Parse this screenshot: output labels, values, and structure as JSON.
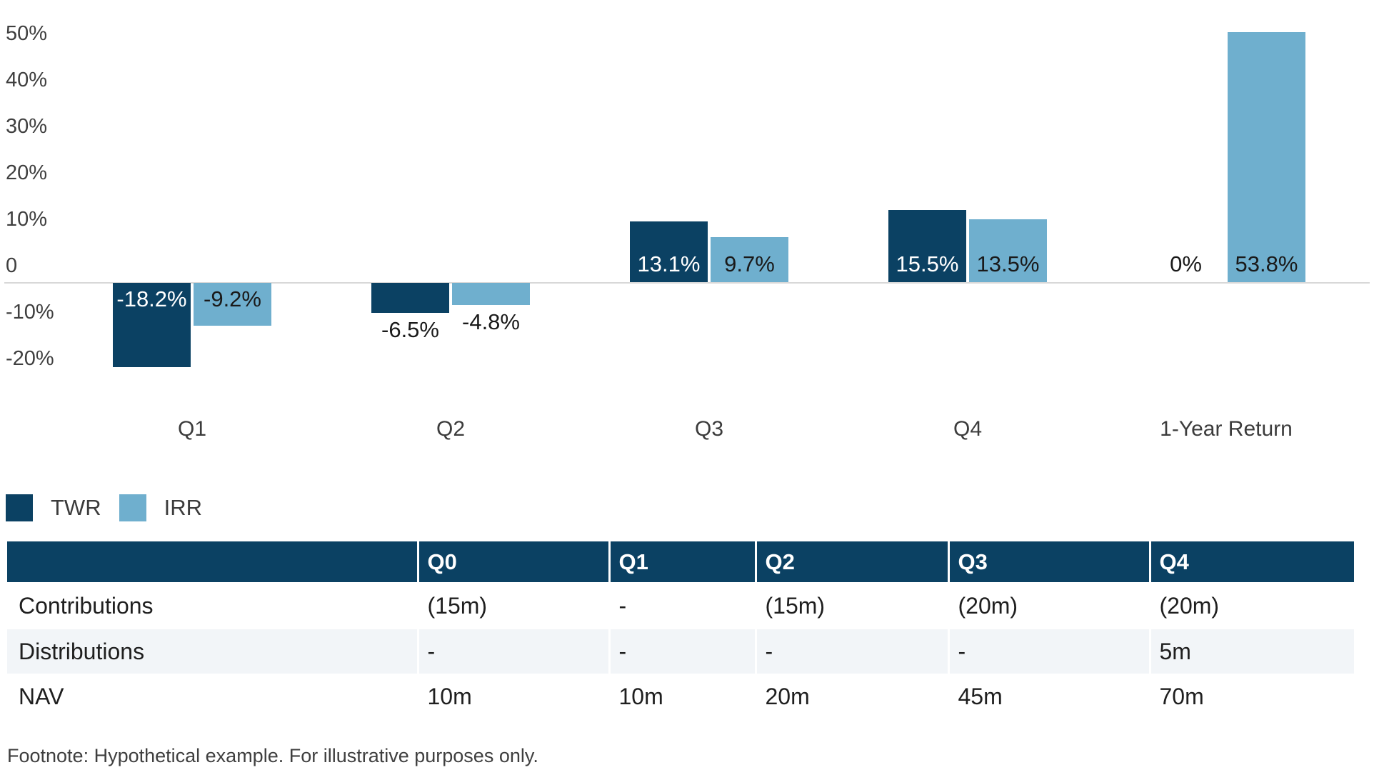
{
  "chart_data": {
    "type": "bar",
    "title": "",
    "xlabel": "",
    "ylabel": "",
    "categories": [
      "Q1",
      "Q2",
      "Q3",
      "Q4",
      "1-Year Return"
    ],
    "series": [
      {
        "name": "TWR",
        "color": "#0B4163",
        "values": [
          -18.2,
          -6.5,
          13.1,
          15.5,
          0
        ],
        "labels": [
          "-18.2%",
          "-6.5%",
          "13.1%",
          "15.5%",
          "0%"
        ]
      },
      {
        "name": "IRR",
        "color": "#6FAFCE",
        "values": [
          -9.2,
          -4.8,
          9.7,
          13.5,
          53.8
        ],
        "labels": [
          "-9.2%",
          "-4.8%",
          "9.7%",
          "13.5%",
          "53.8%"
        ]
      }
    ],
    "y_axis": {
      "range": [
        -20,
        55
      ],
      "ticks": [
        {
          "value": 50,
          "label": "50%"
        },
        {
          "value": 40,
          "label": "40%"
        },
        {
          "value": 30,
          "label": "30%"
        },
        {
          "value": 20,
          "label": "20%"
        },
        {
          "value": 10,
          "label": "10%"
        },
        {
          "value": 0,
          "label": "0"
        },
        {
          "value": -10,
          "label": "-10%"
        },
        {
          "value": -20,
          "label": "-20%"
        }
      ]
    },
    "grid": "zero-line-only",
    "legend_position": "bottom-left"
  },
  "table": {
    "header": [
      "",
      "Q0",
      "Q1",
      "Q2",
      "Q3",
      "Q4"
    ],
    "rows": [
      {
        "label": "Contributions",
        "values": [
          "(15m)",
          "-",
          "(15m)",
          "(20m)",
          "(20m)"
        ]
      },
      {
        "label": "Distributions",
        "values": [
          "-",
          "-",
          "-",
          "-",
          "5m"
        ]
      },
      {
        "label": "NAV",
        "values": [
          "10m",
          "10m",
          "20m",
          "45m",
          "70m"
        ]
      }
    ]
  },
  "footnote": "Footnote: Hypothetical example. For illustrative purposes only.",
  "colors": {
    "twr": "#0B4163",
    "irr": "#6FAFCE",
    "table_header_bg": "#0B4163",
    "table_alt_row_bg": "#F2F5F8",
    "zero_line": "#D8D8D8",
    "axis_text": "#3F3F3F",
    "label_on_light": "#1A1A1A",
    "label_on_dark": "#FFFFFF"
  }
}
